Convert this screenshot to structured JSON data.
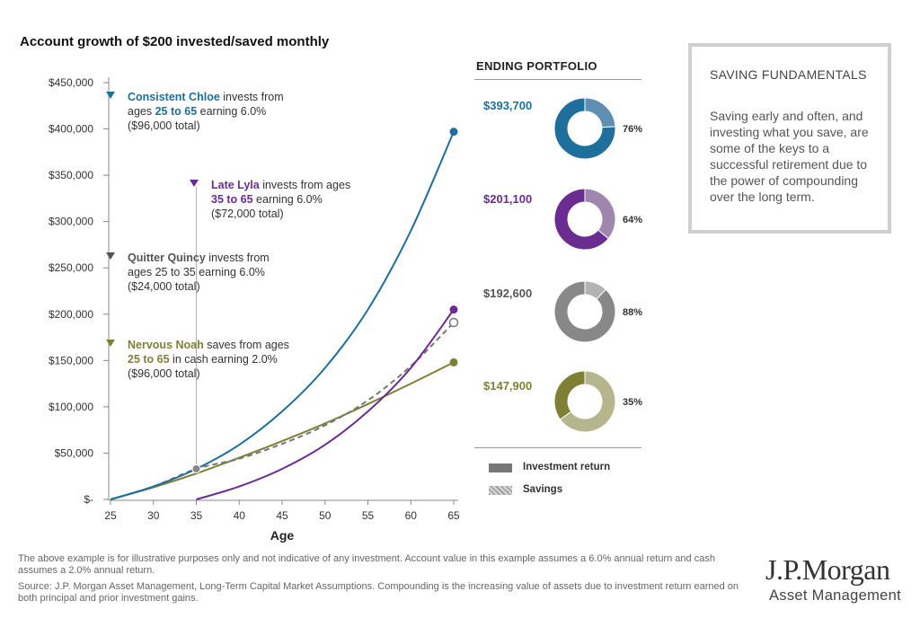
{
  "chart_data": {
    "type": "line",
    "title": "Account growth of $200 invested/saved monthly",
    "xlabel": "Age",
    "ylabel": "",
    "xlim": [
      25,
      65
    ],
    "ylim": [
      0,
      450000
    ],
    "x_ticks": [
      "25",
      "30",
      "35",
      "40",
      "45",
      "50",
      "55",
      "60",
      "65"
    ],
    "y_ticks": [
      "$-",
      "$50,000",
      "$100,000",
      "$150,000",
      "$200,000",
      "$250,000",
      "$300,000",
      "$350,000",
      "$400,000",
      "$450,000"
    ],
    "series": [
      {
        "name": "Consistent Chloe",
        "color": "#1f6f9c",
        "style": "solid",
        "x": [
          25,
          30,
          35,
          40,
          45,
          50,
          55,
          60,
          65
        ],
        "values": [
          0,
          14000,
          33000,
          59000,
          95000,
          142000,
          205000,
          290000,
          397000
        ],
        "end_marker": "filled"
      },
      {
        "name": "Late Lyla",
        "color": "#6a2c91",
        "style": "solid",
        "x": [
          35,
          40,
          45,
          50,
          55,
          60,
          65
        ],
        "values": [
          0,
          14000,
          33000,
          59000,
          95000,
          142000,
          205000
        ],
        "end_marker": "filled"
      },
      {
        "name": "Quitter Quincy",
        "color": "#777777",
        "style": "dashed",
        "x": [
          25,
          30,
          35,
          40,
          45,
          50,
          55,
          60,
          65
        ],
        "values": [
          0,
          14000,
          33000,
          44000,
          60000,
          80000,
          107000,
          144000,
          191000
        ],
        "end_marker": "open"
      },
      {
        "name": "Nervous Noah",
        "color": "#7f8036",
        "style": "solid",
        "x": [
          25,
          30,
          35,
          40,
          45,
          50,
          55,
          60,
          65
        ],
        "values": [
          0,
          13000,
          28000,
          45000,
          63000,
          82000,
          103000,
          125000,
          148000
        ],
        "end_marker": "filled"
      }
    ],
    "age35_marker": {
      "x": 35,
      "y": 33000,
      "color": "#888888"
    },
    "annotations": [
      {
        "color": "#1f6f9c",
        "lines": [
          [
            {
              "t": "Consistent Chloe",
              "b": true,
              "c": true
            },
            {
              "t": " invests from"
            }
          ],
          [
            {
              "t": "ages "
            },
            {
              "t": "25 to 65",
              "b": true,
              "c": true
            },
            {
              "t": " earning 6.0%"
            }
          ],
          [
            {
              "t": "($96,000 total)"
            }
          ]
        ]
      },
      {
        "color": "#6a2c91",
        "lines": [
          [
            {
              "t": "Late Lyla",
              "b": true,
              "c": true
            },
            {
              "t": " invests from ages"
            }
          ],
          [
            {
              "t": "35 to 65",
              "b": true,
              "c": true
            },
            {
              "t": " earning 6.0%"
            }
          ],
          [
            {
              "t": "($72,000 total)"
            }
          ]
        ]
      },
      {
        "color": "#555555",
        "lines": [
          [
            {
              "t": "Quitter Quincy",
              "b": true,
              "c": true
            },
            {
              "t": " invests from"
            }
          ],
          [
            {
              "t": "ages 25 to 35 earning 6.0%"
            }
          ],
          [
            {
              "t": "($24,000 total)"
            }
          ]
        ]
      },
      {
        "color": "#7f8036",
        "lines": [
          [
            {
              "t": "Nervous Noah",
              "b": true,
              "c": true
            },
            {
              "t": " saves from ages"
            }
          ],
          [
            {
              "t": "25 to 65",
              "b": true,
              "c": true
            },
            {
              "t": " in cash earning 2.0%"
            }
          ],
          [
            {
              "t": "($96,000 total)"
            }
          ]
        ]
      }
    ],
    "ending_portfolio": [
      {
        "value": "$393,700",
        "percent": "76%",
        "investment_return": 0.76,
        "value_color": "#1f6f9c",
        "return_color": "#1f6f9c",
        "savings_color": "#5f8fb0"
      },
      {
        "value": "$201,100",
        "percent": "64%",
        "investment_return": 0.64,
        "value_color": "#6a2c91",
        "return_color": "#6a2c91",
        "savings_color": "#9e86ad"
      },
      {
        "value": "$192,600",
        "percent": "88%",
        "investment_return": 0.88,
        "value_color": "#555555",
        "return_color": "#888888",
        "savings_color": "#b3b3b3"
      },
      {
        "value": "$147,900",
        "percent": "35%",
        "investment_return": 0.35,
        "value_color": "#7f8036",
        "return_color": "#7f8036",
        "savings_color": "#b6b68e"
      }
    ]
  },
  "ending_portfolio_title": "ENDING PORTFOLIO",
  "legend": {
    "investment_return": "Investment return",
    "savings": "Savings",
    "investment_return_color": "#777777",
    "savings_color": "#bbbbbb"
  },
  "sidebar": {
    "title": "SAVING FUNDAMENTALS",
    "body": "Saving early and often, and investing what you save, are some of the keys to a successful retirement due to the power of compounding over the long term."
  },
  "footnotes": {
    "line1": "The above example is for illustrative purposes only and not indicative of any investment. Account value in this example assumes a 6.0% annual return and cash assumes a 2.0% annual return.",
    "line2": "Source: J.P. Morgan Asset Management, Long-Term Capital Market Assumptions. Compounding is the increasing value of assets due to investment return earned on both principal and prior investment gains."
  },
  "logo": {
    "name": "J.P.Morgan",
    "subtitle": "Asset Management"
  }
}
